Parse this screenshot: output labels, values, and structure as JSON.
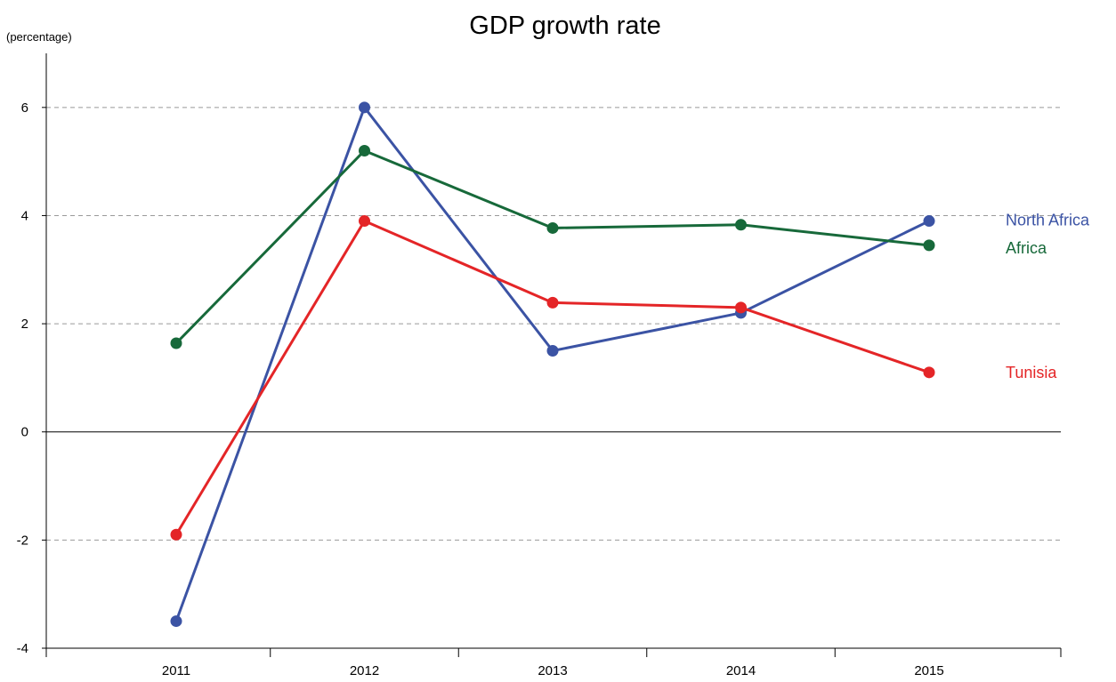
{
  "chart_data": {
    "type": "line",
    "title": "GDP growth rate",
    "ylabel": "(percentage)",
    "xlabel": "",
    "categories": [
      "2011",
      "2012",
      "2013",
      "2014",
      "2015"
    ],
    "ylim": [
      -4,
      7
    ],
    "yticks": [
      -4,
      -2,
      0,
      2,
      4,
      6
    ],
    "grid": true,
    "legend": "inline-right",
    "series": [
      {
        "name": "North Africa",
        "color": "#3b53a4",
        "values": [
          -3.5,
          6.0,
          1.5,
          2.2,
          3.9
        ]
      },
      {
        "name": "Africa",
        "color": "#17693a",
        "values": [
          1.64,
          5.2,
          3.77,
          3.83,
          3.45
        ]
      },
      {
        "name": "Tunisia",
        "color": "#e42527",
        "values": [
          -1.9,
          3.9,
          2.39,
          2.3,
          1.1
        ]
      }
    ]
  }
}
